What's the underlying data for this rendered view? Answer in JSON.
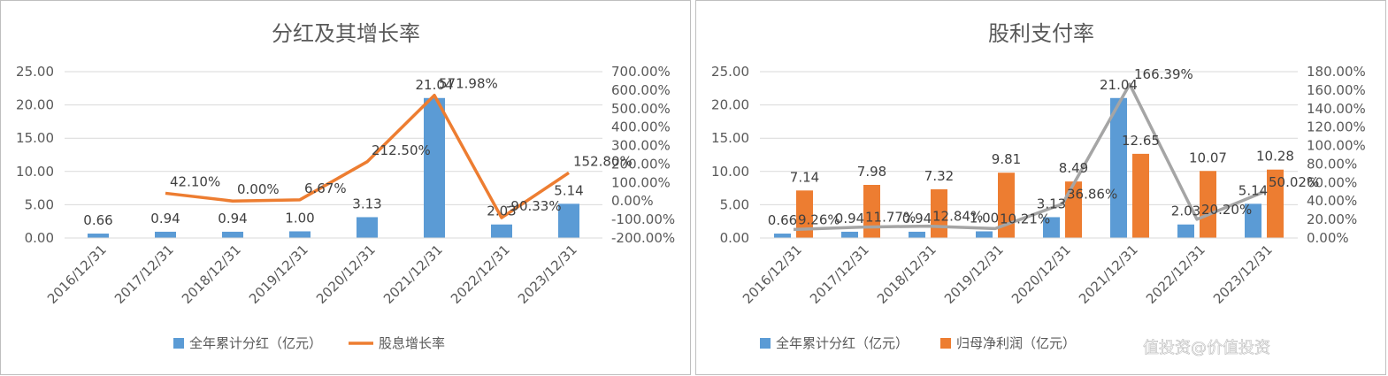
{
  "colors": {
    "blue": "#5b9bd5",
    "orange": "#ed7d31",
    "gray": "#a5a5a5",
    "grid": "#d9d9d9",
    "text": "#595959"
  },
  "chart_data": [
    {
      "type": "bar",
      "title": "分红及其增长率",
      "categories": [
        "2016/12/31",
        "2017/12/31",
        "2018/12/31",
        "2019/12/31",
        "2020/12/31",
        "2021/12/31",
        "2022/12/31",
        "2023/12/31"
      ],
      "y_ticks": [
        "0.00",
        "5.00",
        "10.00",
        "15.00",
        "20.00",
        "25.00"
      ],
      "y2_ticks": [
        "-200.00%",
        "-100.00%",
        "0.00%",
        "100.00%",
        "200.00%",
        "300.00%",
        "400.00%",
        "500.00%",
        "600.00%",
        "700.00%"
      ],
      "ylim": [
        0,
        25
      ],
      "y2lim": [
        -200,
        700
      ],
      "grid": true,
      "legend_position": "bottom",
      "series": [
        {
          "name": "全年累计分红（亿元）",
          "type": "bar",
          "axis": "left",
          "values": [
            0.66,
            0.94,
            0.94,
            1.0,
            3.13,
            21.04,
            2.03,
            5.14
          ],
          "labels": [
            "0.66",
            "0.94",
            "0.94",
            "1.00",
            "3.13",
            "21.04",
            "2.03",
            "5.14"
          ]
        },
        {
          "name": "股息增长率",
          "type": "line",
          "axis": "right",
          "values": [
            null,
            42.1,
            0.0,
            6.67,
            212.5,
            571.98,
            -90.33,
            152.8
          ],
          "labels": [
            "",
            "42.10%",
            "0.00%",
            "6.67%",
            "212.50%",
            "571.98%",
            "-90.33%",
            "152.80%"
          ]
        }
      ]
    },
    {
      "type": "bar",
      "title": "股利支付率",
      "categories": [
        "2016/12/31",
        "2017/12/31",
        "2018/12/31",
        "2019/12/31",
        "2020/12/31",
        "2021/12/31",
        "2022/12/31",
        "2023/12/31"
      ],
      "y_ticks": [
        "0.00",
        "5.00",
        "10.00",
        "15.00",
        "20.00",
        "25.00"
      ],
      "y2_ticks": [
        "0.00%",
        "20.00%",
        "40.00%",
        "60.00%",
        "80.00%",
        "100.00%",
        "120.00%",
        "140.00%",
        "160.00%",
        "180.00%"
      ],
      "ylim": [
        0,
        25
      ],
      "y2lim": [
        0,
        180
      ],
      "grid": true,
      "legend_position": "bottom",
      "series": [
        {
          "name": "全年累计分红（亿元）",
          "type": "bar",
          "axis": "left",
          "values": [
            0.66,
            0.94,
            0.94,
            1.0,
            3.13,
            21.04,
            2.03,
            5.14
          ],
          "labels": [
            "0.66",
            "0.94",
            "0.94",
            "1.00",
            "3.13",
            "21.04",
            "2.03",
            "5.14"
          ]
        },
        {
          "name": "归母净利润（亿元）",
          "type": "bar",
          "axis": "left",
          "values": [
            7.14,
            7.98,
            7.32,
            9.81,
            8.49,
            12.65,
            10.07,
            10.28
          ],
          "labels": [
            "7.14",
            "7.98",
            "7.32",
            "9.81",
            "8.49",
            "12.65",
            "10.07",
            "10.28"
          ]
        },
        {
          "name": "",
          "type": "line",
          "axis": "right",
          "values": [
            9.26,
            11.77,
            12.84,
            10.21,
            36.86,
            166.39,
            20.2,
            50.02
          ],
          "labels": [
            "9.26%",
            "11.77%",
            "12.84%",
            "10.21%",
            "36.86%",
            "166.39%",
            "20.20%",
            "50.02%"
          ]
        }
      ]
    }
  ],
  "watermark": "值投资@价值投资"
}
